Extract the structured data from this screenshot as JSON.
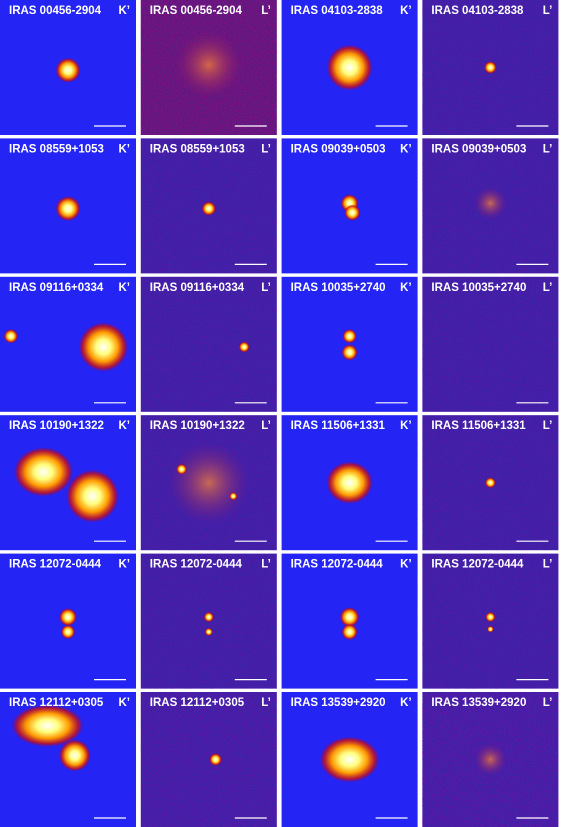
{
  "panels": [
    {
      "name": "IRAS 00456-2904",
      "band": "K’"
    },
    {
      "name": "IRAS 00456-2904",
      "band": "L’"
    },
    {
      "name": "IRAS 04103-2838",
      "band": "K’"
    },
    {
      "name": "IRAS 04103-2838",
      "band": "L’"
    },
    {
      "name": "IRAS 08559+1053",
      "band": "K’"
    },
    {
      "name": "IRAS 08559+1053",
      "band": "L’"
    },
    {
      "name": "IRAS 09039+0503",
      "band": "K’"
    },
    {
      "name": "IRAS 09039+0503",
      "band": "L’"
    },
    {
      "name": "IRAS 09116+0334",
      "band": "K’"
    },
    {
      "name": "IRAS 09116+0334",
      "band": "L’"
    },
    {
      "name": "IRAS 10035+2740",
      "band": "K’"
    },
    {
      "name": "IRAS 10035+2740",
      "band": "L’"
    },
    {
      "name": "IRAS 10190+1322",
      "band": "K’"
    },
    {
      "name": "IRAS 10190+1322",
      "band": "L’"
    },
    {
      "name": "IRAS 11506+1331",
      "band": "K’"
    },
    {
      "name": "IRAS 11506+1331",
      "band": "L’"
    },
    {
      "name": "IRAS 12072-0444",
      "band": "K’"
    },
    {
      "name": "IRAS 12072-0444",
      "band": "L’"
    },
    {
      "name": "IRAS 12072-0444",
      "band": "K’"
    },
    {
      "name": "IRAS 12072-0444",
      "band": "L’"
    },
    {
      "name": "IRAS 12112+0305",
      "band": "K’"
    },
    {
      "name": "IRAS 12112+0305",
      "band": "L’"
    },
    {
      "name": "IRAS 13539+2920",
      "band": "K’"
    },
    {
      "name": "IRAS 13539+2920",
      "band": "L’"
    }
  ]
}
